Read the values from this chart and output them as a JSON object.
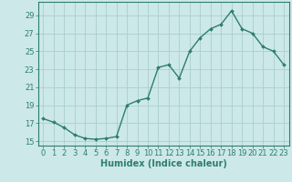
{
  "x": [
    0,
    1,
    2,
    3,
    4,
    5,
    6,
    7,
    8,
    9,
    10,
    11,
    12,
    13,
    14,
    15,
    16,
    17,
    18,
    19,
    20,
    21,
    22,
    23
  ],
  "y": [
    17.5,
    17.1,
    16.5,
    15.7,
    15.3,
    15.2,
    15.3,
    15.5,
    19.0,
    19.5,
    19.8,
    23.2,
    23.5,
    22.0,
    25.0,
    26.5,
    27.5,
    28.0,
    29.5,
    27.5,
    27.0,
    25.5,
    25.0,
    23.5
  ],
  "line_color": "#2e7d6e",
  "marker": "D",
  "marker_size": 2.0,
  "linewidth": 1.0,
  "bg_color": "#cce8e8",
  "grid_color": "#aacece",
  "xlabel": "Humidex (Indice chaleur)",
  "xlim": [
    -0.5,
    23.5
  ],
  "ylim": [
    14.5,
    30.5
  ],
  "yticks": [
    15,
    17,
    19,
    21,
    23,
    25,
    27,
    29
  ],
  "xticks": [
    0,
    1,
    2,
    3,
    4,
    5,
    6,
    7,
    8,
    9,
    10,
    11,
    12,
    13,
    14,
    15,
    16,
    17,
    18,
    19,
    20,
    21,
    22,
    23
  ],
  "xlabel_fontsize": 7.0,
  "tick_fontsize": 6.0
}
